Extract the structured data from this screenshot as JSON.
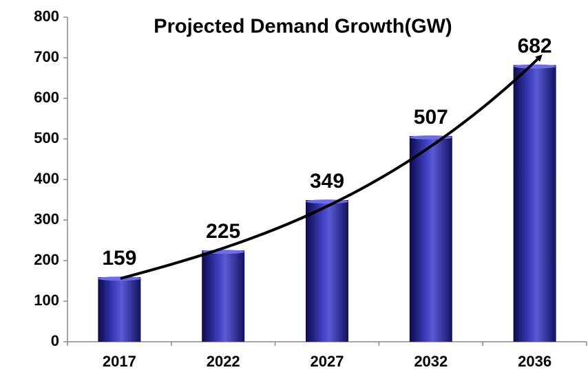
{
  "chart_data": {
    "type": "bar",
    "title": "Projected Demand Growth(GW)",
    "categories": [
      "2017",
      "2022",
      "2027",
      "2032",
      "2036"
    ],
    "values": [
      159,
      225,
      349,
      507,
      682
    ],
    "color": "#2a2a9c",
    "ylim": [
      0,
      800
    ],
    "yticks": [
      0,
      100,
      200,
      300,
      400,
      500,
      600,
      700,
      800
    ]
  }
}
